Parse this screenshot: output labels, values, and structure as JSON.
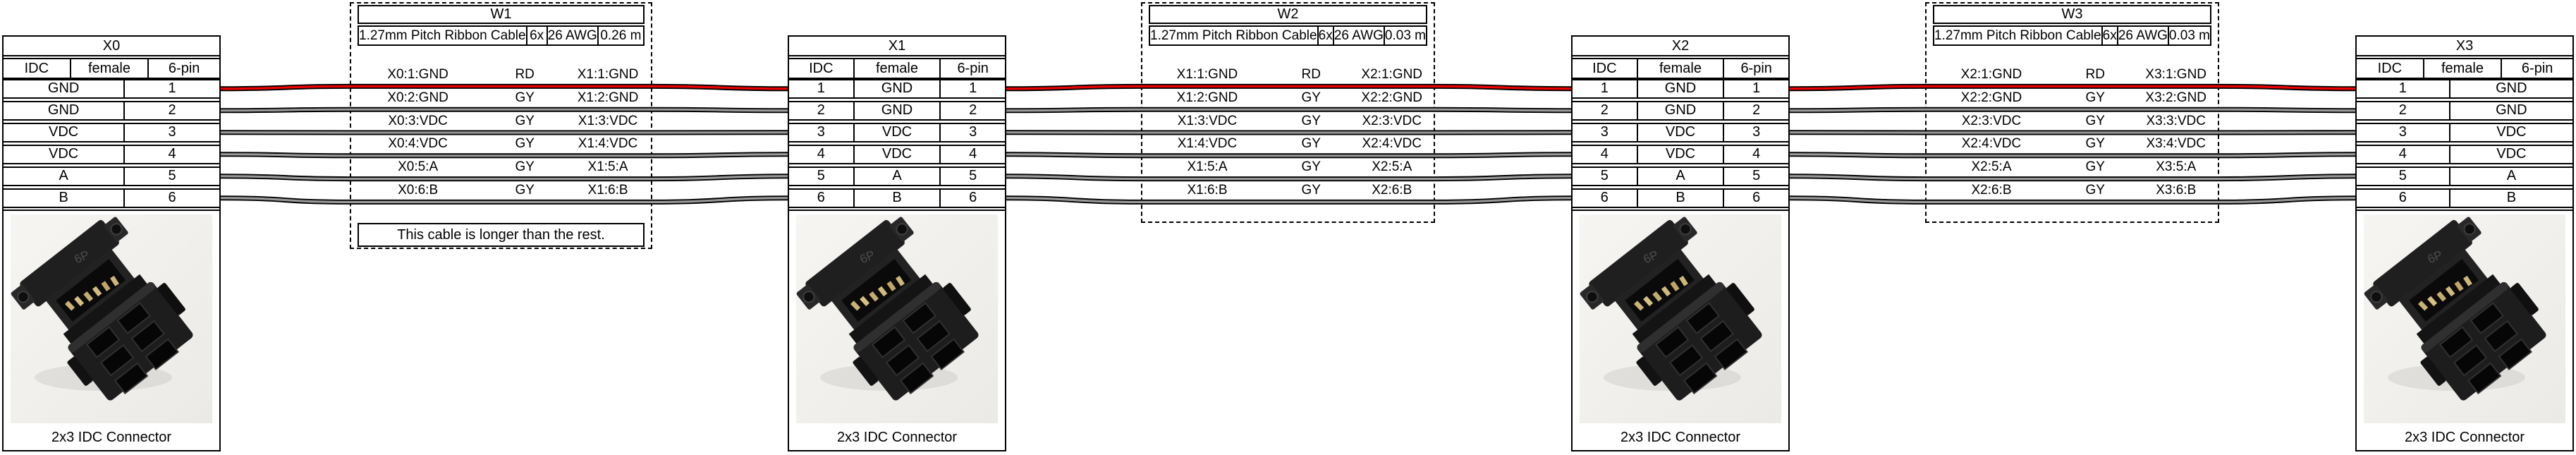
{
  "diagram_type": "wiring-harness",
  "connectors": [
    {
      "designator": "X0",
      "type": "IDC",
      "subtype": "female",
      "pincount": "6-pin",
      "pins_shown": "right",
      "image_caption": "2x3 IDC Connector",
      "pins": [
        {
          "pin": "1",
          "name": "GND"
        },
        {
          "pin": "2",
          "name": "GND"
        },
        {
          "pin": "3",
          "name": "VDC"
        },
        {
          "pin": "4",
          "name": "VDC"
        },
        {
          "pin": "5",
          "name": "A"
        },
        {
          "pin": "6",
          "name": "B"
        }
      ]
    },
    {
      "designator": "X1",
      "type": "IDC",
      "subtype": "female",
      "pincount": "6-pin",
      "pins_shown": "both",
      "image_caption": "2x3 IDC Connector",
      "pins": [
        {
          "pin": "1",
          "name": "GND"
        },
        {
          "pin": "2",
          "name": "GND"
        },
        {
          "pin": "3",
          "name": "VDC"
        },
        {
          "pin": "4",
          "name": "VDC"
        },
        {
          "pin": "5",
          "name": "A"
        },
        {
          "pin": "6",
          "name": "B"
        }
      ]
    },
    {
      "designator": "X2",
      "type": "IDC",
      "subtype": "female",
      "pincount": "6-pin",
      "pins_shown": "both",
      "image_caption": "2x3 IDC Connector",
      "pins": [
        {
          "pin": "1",
          "name": "GND"
        },
        {
          "pin": "2",
          "name": "GND"
        },
        {
          "pin": "3",
          "name": "VDC"
        },
        {
          "pin": "4",
          "name": "VDC"
        },
        {
          "pin": "5",
          "name": "A"
        },
        {
          "pin": "6",
          "name": "B"
        }
      ]
    },
    {
      "designator": "X3",
      "type": "IDC",
      "subtype": "female",
      "pincount": "6-pin",
      "pins_shown": "left",
      "image_caption": "2x3 IDC Connector",
      "pins": [
        {
          "pin": "1",
          "name": "GND"
        },
        {
          "pin": "2",
          "name": "GND"
        },
        {
          "pin": "3",
          "name": "VDC"
        },
        {
          "pin": "4",
          "name": "VDC"
        },
        {
          "pin": "5",
          "name": "A"
        },
        {
          "pin": "6",
          "name": "B"
        }
      ]
    }
  ],
  "cables": [
    {
      "designator": "W1",
      "type": "1.27mm Pitch Ribbon Cable",
      "wirecount": "6x",
      "gauge": "26 AWG",
      "length": "0.26 m",
      "note": "This cable is longer than the rest.",
      "wires": [
        {
          "left_label": "X0:1:GND",
          "color_code": "RD",
          "right_label": "X1:1:GND",
          "color": "#ee0000"
        },
        {
          "left_label": "X0:2:GND",
          "color_code": "GY",
          "right_label": "X1:2:GND",
          "color": "#999999"
        },
        {
          "left_label": "X0:3:VDC",
          "color_code": "GY",
          "right_label": "X1:3:VDC",
          "color": "#999999"
        },
        {
          "left_label": "X0:4:VDC",
          "color_code": "GY",
          "right_label": "X1:4:VDC",
          "color": "#999999"
        },
        {
          "left_label": "X0:5:A",
          "color_code": "GY",
          "right_label": "X1:5:A",
          "color": "#999999"
        },
        {
          "left_label": "X0:6:B",
          "color_code": "GY",
          "right_label": "X1:6:B",
          "color": "#999999"
        }
      ]
    },
    {
      "designator": "W2",
      "type": "1.27mm Pitch Ribbon Cable",
      "wirecount": "6x",
      "gauge": "26 AWG",
      "length": "0.03 m",
      "note": null,
      "wires": [
        {
          "left_label": "X1:1:GND",
          "color_code": "RD",
          "right_label": "X2:1:GND",
          "color": "#ee0000"
        },
        {
          "left_label": "X1:2:GND",
          "color_code": "GY",
          "right_label": "X2:2:GND",
          "color": "#999999"
        },
        {
          "left_label": "X1:3:VDC",
          "color_code": "GY",
          "right_label": "X2:3:VDC",
          "color": "#999999"
        },
        {
          "left_label": "X1:4:VDC",
          "color_code": "GY",
          "right_label": "X2:4:VDC",
          "color": "#999999"
        },
        {
          "left_label": "X1:5:A",
          "color_code": "GY",
          "right_label": "X2:5:A",
          "color": "#999999"
        },
        {
          "left_label": "X1:6:B",
          "color_code": "GY",
          "right_label": "X2:6:B",
          "color": "#999999"
        }
      ]
    },
    {
      "designator": "W3",
      "type": "1.27mm Pitch Ribbon Cable",
      "wirecount": "6x",
      "gauge": "26 AWG",
      "length": "0.03 m",
      "note": null,
      "wires": [
        {
          "left_label": "X2:1:GND",
          "color_code": "RD",
          "right_label": "X3:1:GND",
          "color": "#ee0000"
        },
        {
          "left_label": "X2:2:GND",
          "color_code": "GY",
          "right_label": "X3:2:GND",
          "color": "#999999"
        },
        {
          "left_label": "X2:3:VDC",
          "color_code": "GY",
          "right_label": "X3:3:VDC",
          "color": "#999999"
        },
        {
          "left_label": "X2:4:VDC",
          "color_code": "GY",
          "right_label": "X3:4:VDC",
          "color": "#999999"
        },
        {
          "left_label": "X2:5:A",
          "color_code": "GY",
          "right_label": "X3:5:A",
          "color": "#999999"
        },
        {
          "left_label": "X2:6:B",
          "color_code": "GY",
          "right_label": "X3:6:B",
          "color": "#999999"
        }
      ]
    }
  ],
  "wire_palette": {
    "RD": "#ee0000",
    "GY": "#999999"
  },
  "wire_outline_color": "#000000"
}
